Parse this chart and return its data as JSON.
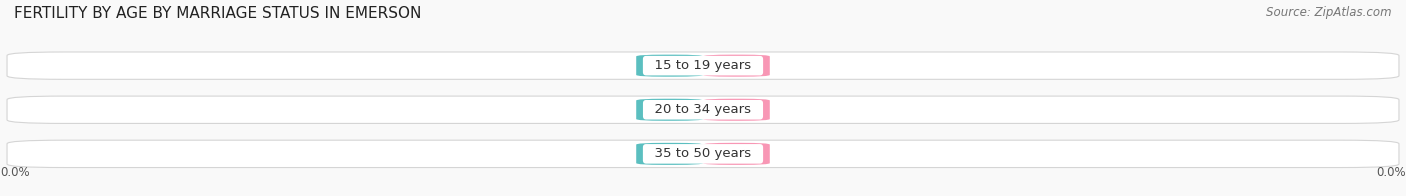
{
  "title": "FERTILITY BY AGE BY MARRIAGE STATUS IN EMERSON",
  "source": "Source: ZipAtlas.com",
  "categories": [
    "15 to 19 years",
    "20 to 34 years",
    "35 to 50 years"
  ],
  "married_values": [
    0.0,
    0.0,
    0.0
  ],
  "unmarried_values": [
    0.0,
    0.0,
    0.0
  ],
  "married_color": "#5bbfc0",
  "unmarried_color": "#f897b5",
  "bar_bg_color_light": "#f0f0f0",
  "bar_bg_color_dark": "#e6e6e6",
  "title_fontsize": 11,
  "source_fontsize": 8.5,
  "value_fontsize": 8,
  "category_fontsize": 9.5,
  "legend_fontsize": 9,
  "background_color": "#f9f9f9",
  "axis_label_color": "#555555",
  "category_label_color": "#333333",
  "value_label_color": "#ffffff",
  "left_axis_label": "0.0%",
  "right_axis_label": "0.0%"
}
